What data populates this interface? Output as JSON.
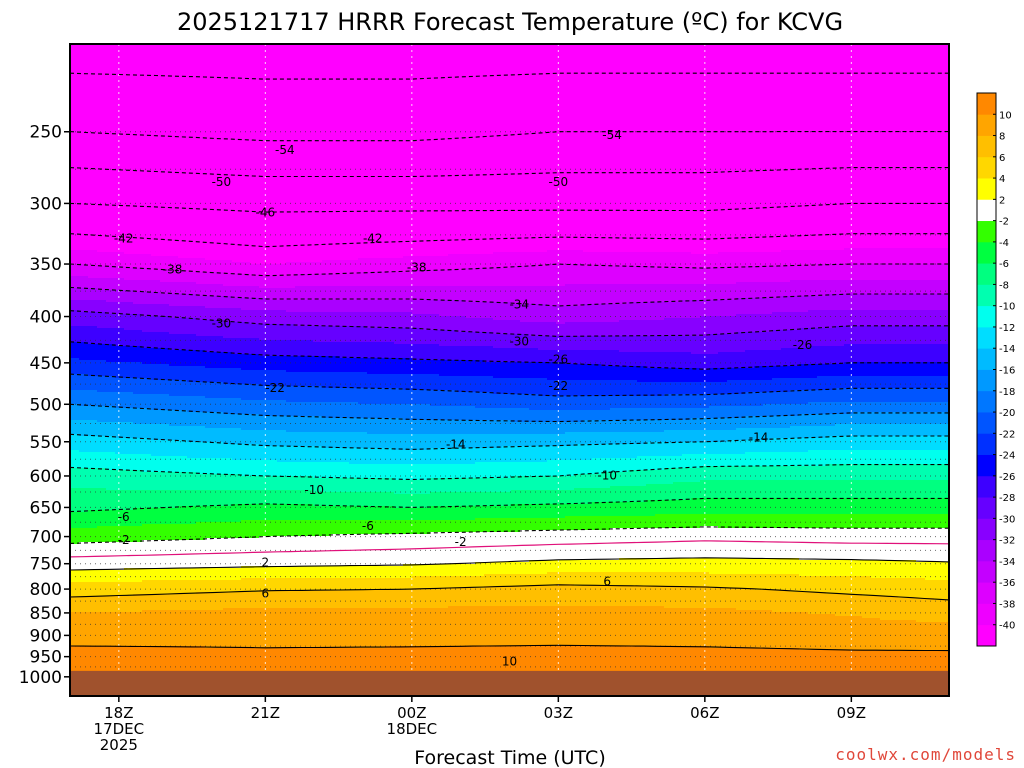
{
  "chart_data": {
    "type": "heatmap",
    "title": "2025121717 HRRR Forecast Temperature (ºC) for KCVG",
    "xlabel": "Forecast Time (UTC)",
    "credit": "coolwx.com/models",
    "x_ticks": [
      {
        "hour": 0,
        "lines": [
          "18Z",
          "17DEC",
          "2025"
        ]
      },
      {
        "hour": 3,
        "lines": [
          "21Z"
        ]
      },
      {
        "hour": 6,
        "lines": [
          "00Z",
          "18DEC"
        ]
      },
      {
        "hour": 9,
        "lines": [
          "03Z"
        ]
      },
      {
        "hour": 12,
        "lines": [
          "06Z"
        ]
      },
      {
        "hour": 15,
        "lines": [
          "09Z"
        ]
      }
    ],
    "x_range_hours": [
      -1,
      17
    ],
    "y_scale": "log",
    "y_range_hpa": [
      1050,
      200
    ],
    "y_ticks": [
      250,
      300,
      350,
      400,
      450,
      500,
      550,
      600,
      650,
      700,
      750,
      800,
      850,
      900,
      950,
      1000
    ],
    "ground_level_hpa": 985,
    "ground_color": "#a0522d",
    "colorbar": {
      "levels": [
        -40,
        -38,
        -36,
        -34,
        -32,
        -30,
        -28,
        -26,
        -24,
        -22,
        -20,
        -18,
        -16,
        -14,
        -12,
        -10,
        -8,
        -6,
        -4,
        -2,
        2,
        4,
        6,
        8,
        10
      ],
      "colors": [
        "#ff00ff",
        "#ee00ff",
        "#dd00ff",
        "#c400ff",
        "#aa00ff",
        "#8800ff",
        "#6600ff",
        "#3d00ff",
        "#0000ff",
        "#0030ff",
        "#0055ff",
        "#0077ff",
        "#0099ff",
        "#00bbff",
        "#00ddff",
        "#00ffee",
        "#00ffb0",
        "#00ff80",
        "#00ff40",
        "#33ff00",
        "#ffffff",
        "#ffff00",
        "#ffd700",
        "#ffbf00",
        "#ffa500",
        "#ff8800"
      ]
    },
    "temperature_profiles": [
      {
        "hour": -1,
        "profile": [
          [
            1000,
            12.8
          ],
          [
            950,
            11
          ],
          [
            900,
            9
          ],
          [
            850,
            8
          ],
          [
            800,
            5
          ],
          [
            750,
            1
          ],
          [
            700,
            -3
          ],
          [
            650,
            -6.5
          ],
          [
            600,
            -9
          ],
          [
            550,
            -13
          ],
          [
            500,
            -18
          ],
          [
            450,
            -23.5
          ],
          [
            400,
            -29
          ],
          [
            350,
            -38
          ],
          [
            300,
            -46
          ],
          [
            250,
            -54
          ],
          [
            200,
            -60
          ]
        ]
      },
      {
        "hour": 3,
        "profile": [
          [
            1000,
            11.5
          ],
          [
            950,
            10.5
          ],
          [
            900,
            9.3
          ],
          [
            850,
            8.6
          ],
          [
            800,
            5.8
          ],
          [
            750,
            1.5
          ],
          [
            700,
            -2
          ],
          [
            650,
            -5.5
          ],
          [
            600,
            -10
          ],
          [
            550,
            -14.5
          ],
          [
            500,
            -19.5
          ],
          [
            450,
            -25
          ],
          [
            400,
            -31
          ],
          [
            350,
            -40
          ],
          [
            300,
            -47
          ],
          [
            250,
            -55
          ],
          [
            200,
            -60
          ]
        ]
      },
      {
        "hour": 6,
        "profile": [
          [
            1000,
            11.5
          ],
          [
            950,
            10.6
          ],
          [
            900,
            9.3
          ],
          [
            850,
            8.6
          ],
          [
            800,
            6
          ],
          [
            750,
            1.8
          ],
          [
            700,
            -1.5
          ],
          [
            650,
            -6
          ],
          [
            600,
            -10.5
          ],
          [
            550,
            -15
          ],
          [
            500,
            -20
          ],
          [
            450,
            -25.5
          ],
          [
            400,
            -31.5
          ],
          [
            350,
            -39
          ],
          [
            300,
            -47
          ],
          [
            250,
            -55
          ],
          [
            200,
            -60
          ]
        ]
      },
      {
        "hour": 9,
        "profile": [
          [
            1000,
            10.8
          ],
          [
            950,
            10.8
          ],
          [
            900,
            9.3
          ],
          [
            850,
            8.6
          ],
          [
            800,
            6.7
          ],
          [
            750,
            2.5
          ],
          [
            700,
            -1
          ],
          [
            650,
            -5.5
          ],
          [
            600,
            -10
          ],
          [
            550,
            -14.5
          ],
          [
            500,
            -21
          ],
          [
            450,
            -26
          ],
          [
            400,
            -33
          ],
          [
            350,
            -38
          ],
          [
            300,
            -47
          ],
          [
            250,
            -54
          ],
          [
            200,
            -60
          ]
        ]
      },
      {
        "hour": 12,
        "profile": [
          [
            1000,
            11
          ],
          [
            950,
            10.6
          ],
          [
            900,
            9.3
          ],
          [
            850,
            8.5
          ],
          [
            800,
            6.3
          ],
          [
            750,
            2.7
          ],
          [
            700,
            -0.5
          ],
          [
            650,
            -5
          ],
          [
            600,
            -8.5
          ],
          [
            550,
            -14
          ],
          [
            500,
            -20.5
          ],
          [
            450,
            -27
          ],
          [
            400,
            -32
          ],
          [
            350,
            -38.5
          ],
          [
            300,
            -47
          ],
          [
            250,
            -54
          ],
          [
            200,
            -60
          ]
        ]
      },
      {
        "hour": 15,
        "profile": [
          [
            1000,
            10.8
          ],
          [
            950,
            10.4
          ],
          [
            900,
            9.1
          ],
          [
            850,
            7.8
          ],
          [
            800,
            5.5
          ],
          [
            750,
            2.5
          ],
          [
            700,
            -0.8
          ],
          [
            650,
            -5
          ],
          [
            600,
            -8.5
          ],
          [
            550,
            -13
          ],
          [
            500,
            -19.5
          ],
          [
            450,
            -26
          ],
          [
            400,
            -31
          ],
          [
            350,
            -38
          ],
          [
            300,
            -46
          ],
          [
            250,
            -54
          ],
          [
            200,
            -60
          ]
        ]
      },
      {
        "hour": 17,
        "profile": [
          [
            1000,
            10.8
          ],
          [
            950,
            10.4
          ],
          [
            900,
            9
          ],
          [
            850,
            7.2
          ],
          [
            800,
            5
          ],
          [
            750,
            2.2
          ],
          [
            700,
            -0.8
          ],
          [
            650,
            -5
          ],
          [
            600,
            -8.5
          ],
          [
            550,
            -13
          ],
          [
            500,
            -19.5
          ],
          [
            450,
            -26
          ],
          [
            400,
            -31
          ],
          [
            350,
            -38
          ],
          [
            300,
            -46
          ],
          [
            250,
            -54
          ],
          [
            200,
            -60
          ]
        ]
      }
    ],
    "contour_labels": [
      {
        "text": "-54",
        "hour": 3.4,
        "hpa": 262
      },
      {
        "text": "-54",
        "hour": 10.1,
        "hpa": 252
      },
      {
        "text": "-50",
        "hour": 2.1,
        "hpa": 284
      },
      {
        "text": "-50",
        "hour": 9.0,
        "hpa": 284
      },
      {
        "text": "-46",
        "hour": 3.0,
        "hpa": 307
      },
      {
        "text": "-42",
        "hour": 0.1,
        "hpa": 328
      },
      {
        "text": "-42",
        "hour": 5.2,
        "hpa": 328
      },
      {
        "text": "-38",
        "hour": 1.1,
        "hpa": 355
      },
      {
        "text": "-38",
        "hour": 6.1,
        "hpa": 353
      },
      {
        "text": "-34",
        "hour": 8.2,
        "hpa": 388
      },
      {
        "text": "-30",
        "hour": 2.1,
        "hpa": 407
      },
      {
        "text": "-30",
        "hour": 8.2,
        "hpa": 426
      },
      {
        "text": "-26",
        "hour": 9.0,
        "hpa": 446
      },
      {
        "text": "-26",
        "hour": 14.0,
        "hpa": 430
      },
      {
        "text": "-22",
        "hour": 3.2,
        "hpa": 480
      },
      {
        "text": "-22",
        "hour": 9.0,
        "hpa": 477
      },
      {
        "text": "-14",
        "hour": 6.9,
        "hpa": 554
      },
      {
        "text": "-14",
        "hour": 13.1,
        "hpa": 544
      },
      {
        "text": "-10",
        "hour": 4.0,
        "hpa": 622
      },
      {
        "text": "-10",
        "hour": 10.0,
        "hpa": 599
      },
      {
        "text": "-6",
        "hour": 0.1,
        "hpa": 666
      },
      {
        "text": "-6",
        "hour": 5.1,
        "hpa": 681
      },
      {
        "text": "-2",
        "hour": 0.1,
        "hpa": 706
      },
      {
        "text": "-2",
        "hour": 7.0,
        "hpa": 710
      },
      {
        "text": "2",
        "hour": 3.0,
        "hpa": 748
      },
      {
        "text": "6",
        "hour": 3.0,
        "hpa": 809
      },
      {
        "text": "6",
        "hour": 10.0,
        "hpa": 785
      },
      {
        "text": "10",
        "hour": 8.0,
        "hpa": 962
      }
    ]
  }
}
